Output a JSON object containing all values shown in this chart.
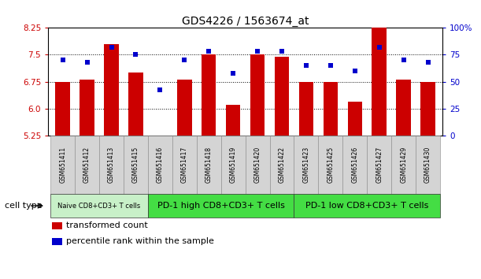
{
  "title": "GDS4226 / 1563674_at",
  "samples": [
    "GSM651411",
    "GSM651412",
    "GSM651413",
    "GSM651415",
    "GSM651416",
    "GSM651417",
    "GSM651418",
    "GSM651419",
    "GSM651420",
    "GSM651422",
    "GSM651423",
    "GSM651425",
    "GSM651426",
    "GSM651427",
    "GSM651429",
    "GSM651430"
  ],
  "bar_values": [
    6.75,
    6.8,
    7.8,
    7.0,
    5.25,
    6.8,
    7.5,
    6.1,
    7.5,
    7.45,
    6.75,
    6.75,
    6.2,
    8.35,
    6.8,
    6.75
  ],
  "dot_values": [
    70,
    68,
    82,
    75,
    42,
    70,
    78,
    58,
    78,
    78,
    65,
    65,
    60,
    82,
    70,
    68
  ],
  "ylim_left": [
    5.25,
    8.25
  ],
  "ylim_right": [
    0,
    100
  ],
  "yticks_left": [
    5.25,
    6.0,
    6.75,
    7.5,
    8.25
  ],
  "yticks_right": [
    0,
    25,
    50,
    75,
    100
  ],
  "ytick_labels_right": [
    "0",
    "25",
    "50",
    "75",
    "100%"
  ],
  "hlines": [
    6.0,
    6.75,
    7.5
  ],
  "bar_color": "#cc0000",
  "dot_color": "#0000cc",
  "bar_bottom": 5.25,
  "groups": [
    {
      "label": "Naive CD8+CD3+ T cells",
      "start": 0,
      "end": 3,
      "color": "#c8f0c8",
      "fontsize": 6
    },
    {
      "label": "PD-1 high CD8+CD3+ T cells",
      "start": 4,
      "end": 9,
      "color": "#44dd44",
      "fontsize": 8
    },
    {
      "label": "PD-1 low CD8+CD3+ T cells",
      "start": 10,
      "end": 15,
      "color": "#44dd44",
      "fontsize": 8
    }
  ],
  "cell_type_label": "cell type",
  "legend_bar_label": "transformed count",
  "legend_dot_label": "percentile rank within the sample",
  "bg_color": "#ffffff",
  "title_fontsize": 10,
  "tick_fontsize": 7.5,
  "sample_fontsize": 5.5,
  "group_fontsize": 8,
  "legend_fontsize": 8
}
